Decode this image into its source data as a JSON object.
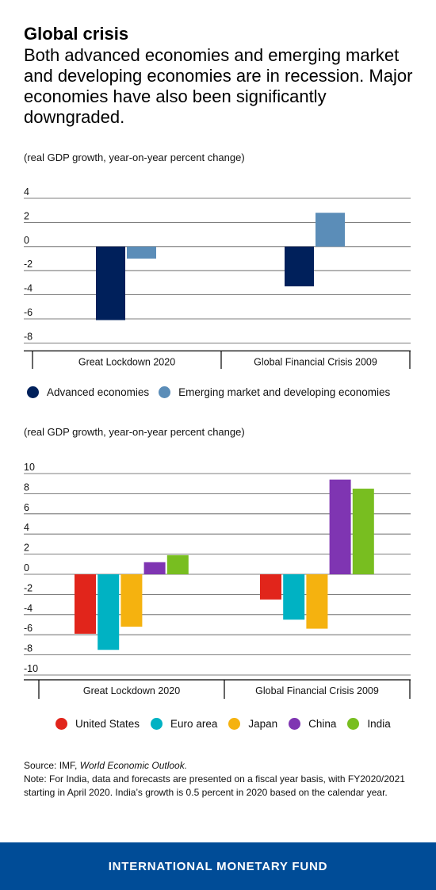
{
  "header": {
    "title": "Global crisis",
    "subtitle": "Both advanced economies and emerging market and developing economies are in recession. Major economies have also been significantly downgraded."
  },
  "colors": {
    "advanced": "#00205b",
    "emerging": "#5b8db8",
    "united_states": "#e1251b",
    "euro_area": "#00b2c3",
    "japan": "#f5b20f",
    "china": "#7f35b2",
    "india": "#78be20",
    "footer": "#004c97"
  },
  "chart_data": [
    {
      "type": "bar",
      "ylabel": "(real GDP growth, year-on-year percent change)",
      "categories": [
        "Great Lockdown 2020",
        "Global Financial Crisis 2009"
      ],
      "series": [
        {
          "name": "Advanced economies",
          "values": [
            -6.1,
            -3.3
          ],
          "color_key": "advanced"
        },
        {
          "name": "Emerging market and developing economies",
          "values": [
            -1.0,
            2.8
          ],
          "color_key": "emerging"
        }
      ],
      "ylim": [
        -8,
        4
      ],
      "yticks": [
        4,
        2,
        0,
        -2,
        -4,
        -6,
        -8
      ],
      "legend": "bottom",
      "grid": true
    },
    {
      "type": "bar",
      "ylabel": "(real GDP growth, year-on-year percent change)",
      "categories": [
        "Great Lockdown 2020",
        "Global Financial Crisis 2009"
      ],
      "series": [
        {
          "name": "United States",
          "values": [
            -5.9,
            -2.5
          ],
          "color_key": "united_states"
        },
        {
          "name": "Euro area",
          "values": [
            -7.5,
            -4.5
          ],
          "color_key": "euro_area"
        },
        {
          "name": "Japan",
          "values": [
            -5.2,
            -5.4
          ],
          "color_key": "japan"
        },
        {
          "name": "China",
          "values": [
            1.2,
            9.4
          ],
          "color_key": "china"
        },
        {
          "name": "India",
          "values": [
            1.9,
            8.5
          ],
          "color_key": "india"
        }
      ],
      "ylim": [
        -10,
        10
      ],
      "yticks": [
        10,
        8,
        6,
        4,
        2,
        0,
        -2,
        -4,
        -6,
        -8,
        -10
      ],
      "legend": "bottom",
      "grid": true
    }
  ],
  "source": {
    "prefix": "Source: IMF, ",
    "publication": "World Economic Outlook.",
    "note": "Note: For India, data and forecasts are presented on a fiscal year basis, with FY2020/2021 starting in April 2020. India’s growth is 0.5 percent in 2020 based on the calendar year."
  },
  "footer": {
    "label": "INTERNATIONAL MONETARY FUND"
  }
}
